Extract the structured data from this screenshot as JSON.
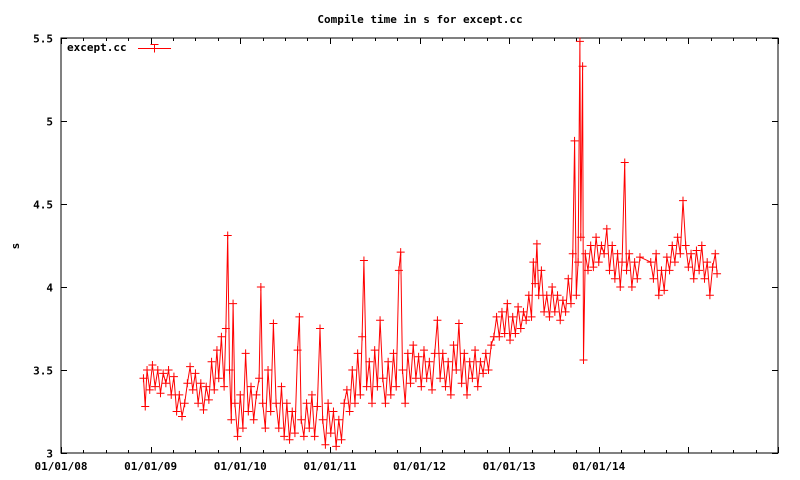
{
  "chart_data": {
    "type": "line",
    "title": "Compile time in s for except.cc",
    "xlabel": "",
    "ylabel": "s",
    "xlim": [
      2008.0,
      2016.0
    ],
    "ylim": [
      3,
      5.5
    ],
    "yticks": [
      3,
      3.5,
      4,
      4.5,
      5,
      5.5
    ],
    "ytick_labels": [
      "3",
      "3.5",
      "4",
      "4.5",
      "5",
      "5.5"
    ],
    "xticks": [
      2008,
      2009,
      2010,
      2011,
      2012,
      2013,
      2014,
      2015,
      2016
    ],
    "xtick_labels": [
      "01/01/08",
      "01/01/09",
      "01/01/10",
      "01/01/11",
      "01/01/12",
      "01/01/13",
      "01/01/14",
      "",
      ""
    ],
    "grid": false,
    "legend_position": "top-left",
    "colors": {
      "series": "#ff0000",
      "axis": "#000000"
    },
    "series": [
      {
        "name": "except.cc",
        "marker": "plus",
        "points": [
          [
            2008.92,
            3.45
          ],
          [
            2008.94,
            3.28
          ],
          [
            2008.96,
            3.5
          ],
          [
            2008.99,
            3.38
          ],
          [
            2009.02,
            3.53
          ],
          [
            2009.05,
            3.4
          ],
          [
            2009.08,
            3.5
          ],
          [
            2009.11,
            3.36
          ],
          [
            2009.14,
            3.48
          ],
          [
            2009.17,
            3.42
          ],
          [
            2009.2,
            3.5
          ],
          [
            2009.23,
            3.35
          ],
          [
            2009.26,
            3.46
          ],
          [
            2009.29,
            3.25
          ],
          [
            2009.32,
            3.35
          ],
          [
            2009.35,
            3.22
          ],
          [
            2009.38,
            3.3
          ],
          [
            2009.41,
            3.42
          ],
          [
            2009.44,
            3.52
          ],
          [
            2009.47,
            3.38
          ],
          [
            2009.5,
            3.48
          ],
          [
            2009.53,
            3.3
          ],
          [
            2009.56,
            3.42
          ],
          [
            2009.59,
            3.26
          ],
          [
            2009.62,
            3.4
          ],
          [
            2009.65,
            3.32
          ],
          [
            2009.68,
            3.55
          ],
          [
            2009.71,
            3.38
          ],
          [
            2009.74,
            3.62
          ],
          [
            2009.76,
            3.45
          ],
          [
            2009.79,
            3.7
          ],
          [
            2009.82,
            3.4
          ],
          [
            2009.84,
            3.75
          ],
          [
            2009.86,
            4.31
          ],
          [
            2009.88,
            3.5
          ],
          [
            2009.9,
            3.2
          ],
          [
            2009.92,
            3.9
          ],
          [
            2009.94,
            3.3
          ],
          [
            2009.97,
            3.1
          ],
          [
            2010.0,
            3.35
          ],
          [
            2010.03,
            3.15
          ],
          [
            2010.06,
            3.6
          ],
          [
            2010.09,
            3.25
          ],
          [
            2010.12,
            3.4
          ],
          [
            2010.15,
            3.2
          ],
          [
            2010.18,
            3.35
          ],
          [
            2010.21,
            3.45
          ],
          [
            2010.23,
            4.0
          ],
          [
            2010.25,
            3.3
          ],
          [
            2010.28,
            3.15
          ],
          [
            2010.31,
            3.5
          ],
          [
            2010.34,
            3.25
          ],
          [
            2010.37,
            3.78
          ],
          [
            2010.4,
            3.3
          ],
          [
            2010.43,
            3.15
          ],
          [
            2010.46,
            3.4
          ],
          [
            2010.49,
            3.1
          ],
          [
            2010.52,
            3.3
          ],
          [
            2010.55,
            3.08
          ],
          [
            2010.58,
            3.25
          ],
          [
            2010.61,
            3.12
          ],
          [
            2010.64,
            3.62
          ],
          [
            2010.66,
            3.82
          ],
          [
            2010.68,
            3.2
          ],
          [
            2010.71,
            3.1
          ],
          [
            2010.74,
            3.3
          ],
          [
            2010.77,
            3.15
          ],
          [
            2010.8,
            3.35
          ],
          [
            2010.83,
            3.1
          ],
          [
            2010.86,
            3.28
          ],
          [
            2010.89,
            3.75
          ],
          [
            2010.92,
            3.2
          ],
          [
            2010.95,
            3.05
          ],
          [
            2010.98,
            3.3
          ],
          [
            2011.01,
            3.12
          ],
          [
            2011.04,
            3.25
          ],
          [
            2011.07,
            3.04
          ],
          [
            2011.1,
            3.2
          ],
          [
            2011.13,
            3.08
          ],
          [
            2011.16,
            3.3
          ],
          [
            2011.19,
            3.38
          ],
          [
            2011.22,
            3.25
          ],
          [
            2011.25,
            3.5
          ],
          [
            2011.28,
            3.3
          ],
          [
            2011.31,
            3.6
          ],
          [
            2011.34,
            3.35
          ],
          [
            2011.36,
            3.7
          ],
          [
            2011.38,
            4.16
          ],
          [
            2011.41,
            3.4
          ],
          [
            2011.44,
            3.55
          ],
          [
            2011.47,
            3.3
          ],
          [
            2011.5,
            3.62
          ],
          [
            2011.53,
            3.4
          ],
          [
            2011.56,
            3.8
          ],
          [
            2011.59,
            3.45
          ],
          [
            2011.62,
            3.3
          ],
          [
            2011.65,
            3.55
          ],
          [
            2011.68,
            3.35
          ],
          [
            2011.71,
            3.6
          ],
          [
            2011.74,
            3.4
          ],
          [
            2011.77,
            4.1
          ],
          [
            2011.79,
            4.21
          ],
          [
            2011.81,
            3.5
          ],
          [
            2011.84,
            3.3
          ],
          [
            2011.87,
            3.6
          ],
          [
            2011.9,
            3.42
          ],
          [
            2011.93,
            3.65
          ],
          [
            2011.96,
            3.45
          ],
          [
            2011.99,
            3.58
          ],
          [
            2012.02,
            3.4
          ],
          [
            2012.05,
            3.62
          ],
          [
            2012.08,
            3.45
          ],
          [
            2012.11,
            3.55
          ],
          [
            2012.14,
            3.38
          ],
          [
            2012.17,
            3.6
          ],
          [
            2012.2,
            3.8
          ],
          [
            2012.23,
            3.45
          ],
          [
            2012.26,
            3.6
          ],
          [
            2012.29,
            3.4
          ],
          [
            2012.32,
            3.55
          ],
          [
            2012.35,
            3.35
          ],
          [
            2012.38,
            3.65
          ],
          [
            2012.41,
            3.5
          ],
          [
            2012.44,
            3.78
          ],
          [
            2012.47,
            3.42
          ],
          [
            2012.5,
            3.6
          ],
          [
            2012.53,
            3.35
          ],
          [
            2012.56,
            3.55
          ],
          [
            2012.59,
            3.45
          ],
          [
            2012.62,
            3.62
          ],
          [
            2012.65,
            3.4
          ],
          [
            2012.68,
            3.55
          ],
          [
            2012.71,
            3.48
          ],
          [
            2012.74,
            3.6
          ],
          [
            2012.77,
            3.5
          ],
          [
            2012.8,
            3.65
          ],
          [
            2012.83,
            3.7
          ],
          [
            2012.86,
            3.82
          ],
          [
            2012.89,
            3.7
          ],
          [
            2012.92,
            3.85
          ],
          [
            2012.95,
            3.72
          ],
          [
            2012.98,
            3.9
          ],
          [
            2013.01,
            3.68
          ],
          [
            2013.04,
            3.82
          ],
          [
            2013.07,
            3.72
          ],
          [
            2013.1,
            3.88
          ],
          [
            2013.13,
            3.75
          ],
          [
            2013.16,
            3.85
          ],
          [
            2013.19,
            3.8
          ],
          [
            2013.22,
            3.95
          ],
          [
            2013.25,
            3.82
          ],
          [
            2013.27,
            4.15
          ],
          [
            2013.29,
            4.02
          ],
          [
            2013.31,
            4.26
          ],
          [
            2013.33,
            3.95
          ],
          [
            2013.36,
            4.1
          ],
          [
            2013.39,
            3.85
          ],
          [
            2013.42,
            3.95
          ],
          [
            2013.45,
            3.82
          ],
          [
            2013.48,
            4.0
          ],
          [
            2013.51,
            3.85
          ],
          [
            2013.54,
            3.95
          ],
          [
            2013.57,
            3.8
          ],
          [
            2013.6,
            3.92
          ],
          [
            2013.63,
            3.85
          ],
          [
            2013.66,
            4.05
          ],
          [
            2013.69,
            3.9
          ],
          [
            2013.71,
            4.2
          ],
          [
            2013.73,
            4.88
          ],
          [
            2013.75,
            3.95
          ],
          [
            2013.77,
            4.15
          ],
          [
            2013.79,
            5.48
          ],
          [
            2013.8,
            4.3
          ],
          [
            2013.82,
            5.33
          ],
          [
            2013.83,
            3.56
          ],
          [
            2013.85,
            4.2
          ],
          [
            2013.88,
            4.1
          ],
          [
            2013.91,
            4.25
          ],
          [
            2013.94,
            4.12
          ],
          [
            2013.97,
            4.3
          ],
          [
            2014.0,
            4.15
          ],
          [
            2014.03,
            4.25
          ],
          [
            2014.06,
            4.2
          ],
          [
            2014.09,
            4.35
          ],
          [
            2014.12,
            4.1
          ],
          [
            2014.15,
            4.25
          ],
          [
            2014.18,
            4.05
          ],
          [
            2014.21,
            4.2
          ],
          [
            2014.24,
            4.0
          ],
          [
            2014.26,
            4.15
          ],
          [
            2014.29,
            4.75
          ],
          [
            2014.31,
            4.1
          ],
          [
            2014.34,
            4.2
          ],
          [
            2014.37,
            4.0
          ],
          [
            2014.4,
            4.15
          ],
          [
            2014.43,
            4.05
          ],
          [
            2014.46,
            4.18
          ],
          [
            2014.58,
            4.15
          ],
          [
            2014.61,
            4.05
          ],
          [
            2014.64,
            4.2
          ],
          [
            2014.67,
            3.95
          ],
          [
            2014.7,
            4.1
          ],
          [
            2014.73,
            3.98
          ],
          [
            2014.76,
            4.18
          ],
          [
            2014.79,
            4.1
          ],
          [
            2014.82,
            4.25
          ],
          [
            2014.85,
            4.15
          ],
          [
            2014.88,
            4.3
          ],
          [
            2014.91,
            4.2
          ],
          [
            2014.94,
            4.52
          ],
          [
            2014.97,
            4.25
          ],
          [
            2015.0,
            4.12
          ],
          [
            2015.03,
            4.2
          ],
          [
            2015.06,
            4.05
          ],
          [
            2015.09,
            4.22
          ],
          [
            2015.12,
            4.1
          ],
          [
            2015.15,
            4.25
          ],
          [
            2015.18,
            4.05
          ],
          [
            2015.21,
            4.15
          ],
          [
            2015.24,
            3.95
          ],
          [
            2015.27,
            4.12
          ],
          [
            2015.3,
            4.2
          ],
          [
            2015.32,
            4.08
          ]
        ]
      }
    ]
  }
}
